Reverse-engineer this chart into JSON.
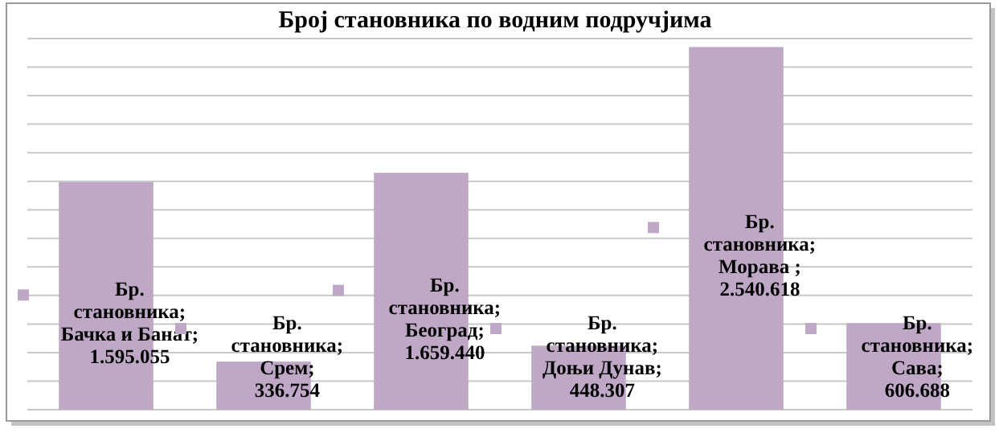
{
  "chart_data": {
    "type": "bar",
    "title": "Број становника по водним подручјима",
    "categories": [
      null,
      null,
      null,
      null,
      null,
      null
    ],
    "series": [
      {
        "color": "#bfa8c6",
        "values": [
          1595055,
          336754,
          1659440,
          448307,
          2540618,
          606688
        ],
        "value_labels": [
          "Бр. становника; Бачка и Банат; 1.595.055",
          "Бр. становника; Срем; 336.754",
          "Бр. становника; Београд; 1.659.440",
          "Бр. становника; Доњи Дунав; 448.307",
          "Бр. становника; Морава ; 2.540.618",
          "Бр. становника; Сава; 606.688"
        ]
      }
    ],
    "ylim": [
      0,
      2600000
    ],
    "yticks": [
      {
        "value": 0,
        "label": null
      },
      {
        "value": 200000,
        "label": null
      },
      {
        "value": 400000,
        "label": null
      },
      {
        "value": 600000,
        "label": null
      },
      {
        "value": 800000,
        "label": null
      },
      {
        "value": 1000000,
        "label": null
      },
      {
        "value": 1200000,
        "label": null
      },
      {
        "value": 1400000,
        "label": null
      },
      {
        "value": 1600000,
        "label": null
      },
      {
        "value": 1800000,
        "label": null
      },
      {
        "value": 2000000,
        "label": null
      },
      {
        "value": 2200000,
        "label": null
      },
      {
        "value": 2400000,
        "label": null
      },
      {
        "value": 2600000,
        "label": null
      }
    ],
    "grid": "y",
    "data_labels": true
  }
}
